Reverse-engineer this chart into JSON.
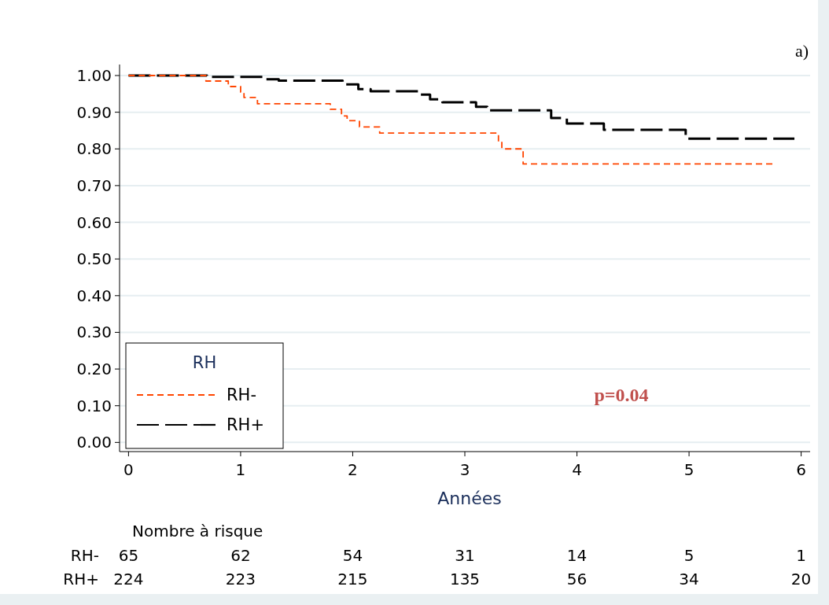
{
  "chart_data": {
    "type": "step",
    "xlabel": "Années",
    "legend_title": "RH",
    "legend": "bottom left",
    "grid": "y",
    "xlim": [
      -0.08,
      6.08
    ],
    "xticks": [
      0,
      1,
      2,
      3,
      4,
      5,
      6
    ],
    "ylim": [
      -0.025,
      1.03
    ],
    "yticks": [
      {
        "value": 0,
        "label": "0.00"
      },
      {
        "value": 0.1,
        "label": "0.10"
      },
      {
        "value": 0.2,
        "label": "0.20"
      },
      {
        "value": 0.3,
        "label": "0.30"
      },
      {
        "value": 0.4,
        "label": "0.40"
      },
      {
        "value": 0.5,
        "label": "0.50"
      },
      {
        "value": 0.6,
        "label": "0.60"
      },
      {
        "value": 0.7,
        "label": "0.70"
      },
      {
        "value": 0.8,
        "label": "0.80"
      },
      {
        "value": 0.9,
        "label": "0.90"
      },
      {
        "value": 1,
        "label": "1.00"
      }
    ],
    "series": [
      {
        "name": "RH-",
        "color": "#ff4500",
        "line_style": "dashed",
        "x": [
          0,
          0.69,
          0.89,
          1.0,
          1.03,
          1.15,
          1.8,
          1.9,
          1.95,
          2.06,
          2.24,
          3.3,
          3.33,
          3.52,
          5.76
        ],
        "values": [
          1.0,
          0.985,
          0.97,
          0.955,
          0.94,
          0.923,
          0.908,
          0.89,
          0.877,
          0.86,
          0.843,
          0.82,
          0.8,
          0.759,
          0.759
        ]
      },
      {
        "name": "RH+",
        "color": "#000000",
        "line_style": "longdash",
        "x": [
          0,
          0.7,
          1.22,
          1.34,
          1.91,
          2.05,
          2.16,
          2.6,
          2.69,
          2.8,
          3.1,
          3.2,
          3.77,
          3.91,
          4.24,
          4.97,
          5.94
        ],
        "values": [
          1.0,
          0.996,
          0.99,
          0.986,
          0.976,
          0.963,
          0.957,
          0.948,
          0.935,
          0.927,
          0.915,
          0.905,
          0.884,
          0.869,
          0.852,
          0.828,
          0.828
        ]
      }
    ],
    "annotations": [
      "a)",
      "p=0.04",
      "Nombre à risque",
      "65 62 54 31 14 5 1",
      "224 223 215 135 56 34 20"
    ]
  }
}
